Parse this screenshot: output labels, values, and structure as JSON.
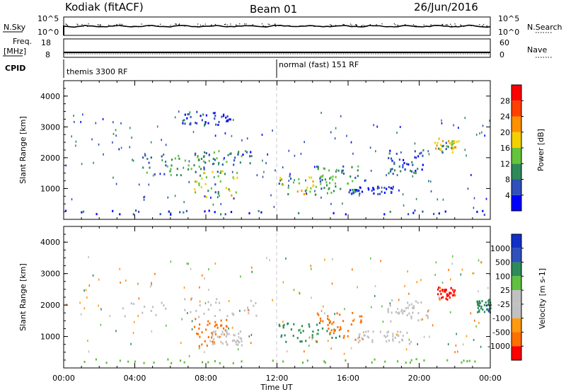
{
  "header": {
    "station": "Kodiak (fitACF)",
    "beam": "Beam 01",
    "date": "26/Jun/2016"
  },
  "noise_panel": {
    "left_label": "N.Sky",
    "right_label": "N.Search",
    "left_ticks": [
      "10^5",
      "10^0"
    ],
    "right_ticks": [
      "10^5",
      "10^0"
    ]
  },
  "freq_panel": {
    "left_label": "Freq.",
    "left_unit": "[MHz]",
    "right_label": "Nave",
    "left_ticks": [
      "18",
      "8"
    ],
    "right_ticks": [
      "60",
      "0"
    ]
  },
  "cpid_panel": {
    "label": "CPID",
    "modes": [
      "themis 3300 RF",
      "normal (fast) 151 RF"
    ]
  },
  "colors": {
    "power": [
      "#0000ff",
      "#3050ba",
      "#2f8a5a",
      "#65c43b",
      "#f3d000",
      "#ff9000",
      "#ff4000",
      "#ff0000"
    ],
    "velocity": [
      "#ff0000",
      "#ff7000",
      "#ff9a10",
      "#c0c0c0",
      "#c0c0c0",
      "#60c040",
      "#2f8a5a",
      "#3050ba",
      "#1030c8"
    ]
  },
  "chart_data": [
    {
      "type": "heatmap",
      "title": "Power",
      "ylabel": "Slant Range [km]",
      "xlabel": "Time UT",
      "x_ticks": [
        "00:00",
        "04:00",
        "08:00",
        "12:00",
        "16:00",
        "20:00",
        "00:00"
      ],
      "y_ticks": [
        1000,
        2000,
        3000,
        4000
      ],
      "ylim": [
        0,
        4500
      ],
      "xlim_hours": [
        0,
        24
      ],
      "colorbar_label": "Power [dB]",
      "colorbar_ticks": [
        4,
        8,
        12,
        16,
        20,
        24,
        28
      ],
      "colorbar_range": [
        0,
        32
      ],
      "mode_change_hour": 12,
      "echo_regions": [
        {
          "t0": 4.4,
          "t1": 8.0,
          "r0": 1450,
          "r1": 2150,
          "value": 10
        },
        {
          "t0": 6.8,
          "t1": 10.6,
          "r0": 1800,
          "r1": 2250,
          "value": 9
        },
        {
          "t0": 7.3,
          "t1": 9.8,
          "r0": 700,
          "r1": 1650,
          "value": 14
        },
        {
          "t0": 6.6,
          "t1": 9.4,
          "r0": 3100,
          "r1": 3550,
          "value": 5
        },
        {
          "t0": 12.0,
          "t1": 15.2,
          "r0": 800,
          "r1": 1450,
          "value": 14
        },
        {
          "t0": 14.2,
          "t1": 16.6,
          "r0": 950,
          "r1": 1800,
          "value": 10
        },
        {
          "t0": 16.0,
          "t1": 18.6,
          "r0": 850,
          "r1": 1100,
          "value": 5
        },
        {
          "t0": 18.2,
          "t1": 20.2,
          "r0": 1500,
          "r1": 2300,
          "value": 6
        },
        {
          "t0": 20.8,
          "t1": 22.2,
          "r0": 2200,
          "r1": 2650,
          "value": 15
        },
        {
          "t0": 0.0,
          "t1": 24.0,
          "r0": 180,
          "r1": 320,
          "value": 5
        }
      ]
    },
    {
      "type": "heatmap",
      "title": "Velocity",
      "ylabel": "Slant Range [km]",
      "xlabel": "Time UT",
      "x_ticks": [
        "00:00",
        "04:00",
        "08:00",
        "12:00",
        "16:00",
        "20:00",
        "00:00"
      ],
      "y_ticks": [
        1000,
        2000,
        3000,
        4000
      ],
      "ylim": [
        0,
        4500
      ],
      "xlim_hours": [
        0,
        24
      ],
      "colorbar_label": "Velocity [m s-1]",
      "colorbar_ticks": [
        "1000",
        "500",
        "100",
        "25",
        "-25",
        "-100",
        "-500",
        "-1000"
      ],
      "mode_change_hour": 12,
      "echo_regions": [
        {
          "t0": 3.3,
          "t1": 10.8,
          "r0": 1650,
          "r1": 2250,
          "value": 0
        },
        {
          "t0": 7.3,
          "t1": 9.2,
          "r0": 700,
          "r1": 1600,
          "value": -300
        },
        {
          "t0": 8.2,
          "t1": 10.0,
          "r0": 750,
          "r1": 1200,
          "value": 0
        },
        {
          "t0": 12.0,
          "t1": 15.5,
          "r0": 800,
          "r1": 1500,
          "value": 150
        },
        {
          "t0": 14.2,
          "t1": 16.8,
          "r0": 900,
          "r1": 1800,
          "value": -150
        },
        {
          "t0": 16.5,
          "t1": 19.5,
          "r0": 800,
          "r1": 1200,
          "value": 0
        },
        {
          "t0": 18.2,
          "t1": 20.5,
          "r0": 1500,
          "r1": 2200,
          "value": 0
        },
        {
          "t0": 21.0,
          "t1": 22.0,
          "r0": 2200,
          "r1": 2600,
          "value": -600
        },
        {
          "t0": 23.2,
          "t1": 24.0,
          "r0": 1800,
          "r1": 2200,
          "value": 400
        },
        {
          "t0": 0.0,
          "t1": 24.0,
          "r0": 180,
          "r1": 320,
          "value": 50
        }
      ]
    }
  ]
}
